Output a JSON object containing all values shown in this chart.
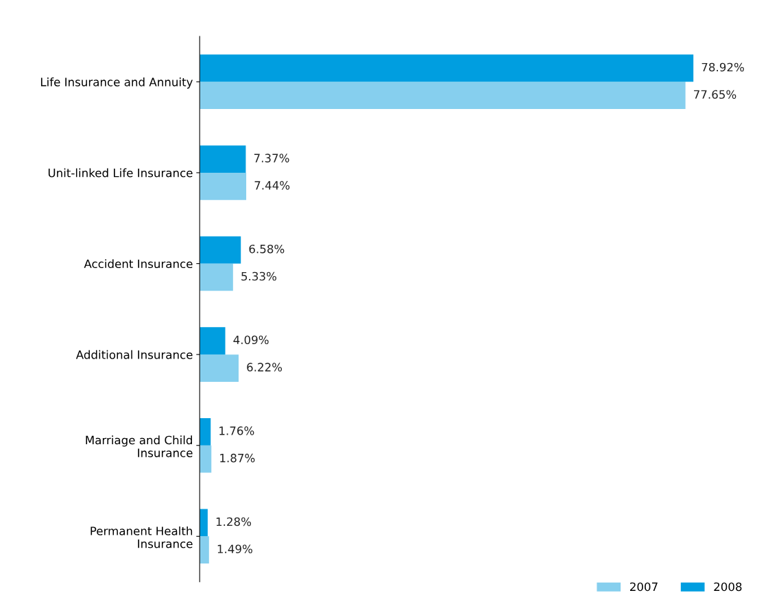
{
  "chart_data": {
    "type": "bar",
    "orientation": "horizontal",
    "categories": [
      "Life Insurance and Annuity",
      "Unit-linked Life Insurance",
      "Accident Insurance",
      "Additional Insurance",
      "Marriage and Child\nInsurance",
      "Permanent Health\nInsurance"
    ],
    "series": [
      {
        "name": "2007",
        "color": "#86cfee",
        "values": [
          77.65,
          7.44,
          5.33,
          6.22,
          1.87,
          1.49
        ],
        "value_labels": [
          "77.65%",
          "7.44%",
          "5.33%",
          "6.22%",
          "1.87%",
          "1.49%"
        ]
      },
      {
        "name": "2008",
        "color": "#009ee0",
        "values": [
          78.92,
          7.37,
          6.58,
          4.09,
          1.76,
          1.28
        ],
        "value_labels": [
          "78.92%",
          "7.37%",
          "6.58%",
          "4.09%",
          "1.76%",
          "1.28%"
        ]
      }
    ],
    "legend": "bottom right",
    "grid": false
  }
}
